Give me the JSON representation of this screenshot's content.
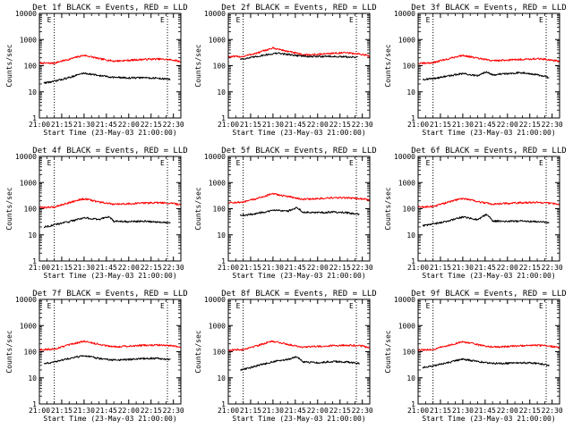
{
  "figure": {
    "background": "#ffffff",
    "colors": {
      "events": "#000000",
      "lld": "#ff0000",
      "axes": "#000000"
    }
  },
  "chart_data": [
    {
      "type": "line",
      "title": "Det 1f BLACK = Events, RED = LLD",
      "xlabel": "Start Time (23-May-03 21:00:00)",
      "ylabel": "Counts/sec",
      "x_ticks": [
        "21:00",
        "21:15",
        "21:30",
        "21:45",
        "22:00",
        "22:15",
        "22:30"
      ],
      "y_ticks": [
        "1",
        "10",
        "100",
        "1000",
        "10000"
      ],
      "y_scale": "log",
      "xlim": [
        0,
        95
      ],
      "ylim": [
        1,
        10000
      ],
      "markers": {
        "start_label": "E",
        "end_label": "E",
        "start_x": 10,
        "end_x": 86
      },
      "series": [
        {
          "name": "Events",
          "color": "#000000",
          "x": [
            3,
            10,
            20,
            30,
            40,
            50,
            60,
            70,
            80,
            88
          ],
          "values": [
            22,
            25,
            35,
            52,
            42,
            36,
            34,
            35,
            33,
            30
          ]
        },
        {
          "name": "LLD",
          "color": "#ff0000",
          "x": [
            0,
            10,
            20,
            30,
            40,
            50,
            60,
            70,
            80,
            90,
            95
          ],
          "values": [
            125,
            125,
            175,
            250,
            185,
            150,
            160,
            175,
            180,
            165,
            140
          ]
        }
      ]
    },
    {
      "type": "line",
      "title": "Det 2f BLACK = Events, RED = LLD",
      "xlabel": "Start Time (23-May-03 21:00:00)",
      "ylabel": "Counts/sec",
      "x_ticks": [
        "21:00",
        "21:15",
        "21:30",
        "21:45",
        "22:00",
        "22:15",
        "22:30"
      ],
      "y_ticks": [
        "1",
        "10",
        "100",
        "1000",
        "10000"
      ],
      "y_scale": "log",
      "xlim": [
        0,
        95
      ],
      "ylim": [
        1,
        10000
      ],
      "markers": {
        "start_label": "E",
        "end_label": "E",
        "start_x": 10,
        "end_x": 86
      },
      "series": [
        {
          "name": "Events",
          "color": "#000000",
          "x": [
            8,
            15,
            25,
            33,
            45,
            55,
            65,
            75,
            87
          ],
          "values": [
            180,
            200,
            260,
            300,
            250,
            220,
            230,
            220,
            210
          ]
        },
        {
          "name": "LLD",
          "color": "#ff0000",
          "x": [
            0,
            10,
            20,
            30,
            40,
            50,
            60,
            70,
            80,
            90,
            95
          ],
          "values": [
            220,
            225,
            310,
            470,
            350,
            260,
            270,
            300,
            310,
            270,
            230
          ]
        }
      ]
    },
    {
      "type": "line",
      "title": "Det 3f BLACK = Events, RED = LLD",
      "xlabel": "Start Time (23-May-03 21:00:00)",
      "ylabel": "Counts/sec",
      "x_ticks": [
        "21:00",
        "21:15",
        "21:30",
        "21:45",
        "22:00",
        "22:15",
        "22:30"
      ],
      "y_ticks": [
        "1",
        "10",
        "100",
        "1000",
        "10000"
      ],
      "y_scale": "log",
      "xlim": [
        0,
        95
      ],
      "ylim": [
        1,
        10000
      ],
      "markers": {
        "start_label": "E",
        "end_label": "E",
        "start_x": 10,
        "end_x": 86
      },
      "series": [
        {
          "name": "Events",
          "color": "#000000",
          "x": [
            3,
            10,
            20,
            30,
            40,
            46,
            50,
            60,
            70,
            80,
            88
          ],
          "values": [
            30,
            32,
            40,
            50,
            40,
            60,
            45,
            50,
            55,
            45,
            35
          ]
        },
        {
          "name": "LLD",
          "color": "#ff0000",
          "x": [
            0,
            10,
            20,
            30,
            40,
            50,
            60,
            70,
            80,
            90,
            95
          ],
          "values": [
            120,
            130,
            180,
            250,
            190,
            155,
            165,
            175,
            185,
            165,
            145
          ]
        }
      ]
    },
    {
      "type": "line",
      "title": "Det 4f BLACK = Events, RED = LLD",
      "xlabel": "Start Time (23-May-03 21:00:00)",
      "ylabel": "Counts/sec",
      "x_ticks": [
        "21:00",
        "21:15",
        "21:30",
        "21:45",
        "22:00",
        "22:15",
        "22:30"
      ],
      "y_ticks": [
        "1",
        "10",
        "100",
        "1000",
        "10000"
      ],
      "y_scale": "log",
      "xlim": [
        0,
        95
      ],
      "ylim": [
        1,
        10000
      ],
      "markers": {
        "start_label": "E",
        "end_label": "E",
        "start_x": 10,
        "end_x": 86
      },
      "series": [
        {
          "name": "Events",
          "color": "#000000",
          "x": [
            3,
            10,
            20,
            30,
            40,
            46,
            50,
            60,
            70,
            80,
            88
          ],
          "values": [
            20,
            24,
            32,
            45,
            38,
            50,
            33,
            32,
            33,
            31,
            30
          ]
        },
        {
          "name": "LLD",
          "color": "#ff0000",
          "x": [
            0,
            10,
            20,
            30,
            40,
            50,
            60,
            70,
            80,
            90,
            95
          ],
          "values": [
            110,
            115,
            170,
            240,
            180,
            145,
            155,
            165,
            170,
            160,
            140
          ]
        }
      ]
    },
    {
      "type": "line",
      "title": "Det 5f BLACK = Events, RED = LLD",
      "xlabel": "Start Time (23-May-03 21:00:00)",
      "ylabel": "Counts/sec",
      "x_ticks": [
        "21:00",
        "21:15",
        "21:30",
        "21:45",
        "22:00",
        "22:15",
        "22:30"
      ],
      "y_ticks": [
        "1",
        "10",
        "100",
        "1000",
        "10000"
      ],
      "y_scale": "log",
      "xlim": [
        0,
        95
      ],
      "ylim": [
        1,
        10000
      ],
      "markers": {
        "start_label": "E",
        "end_label": "E",
        "start_x": 10,
        "end_x": 86
      },
      "series": [
        {
          "name": "Events",
          "color": "#000000",
          "x": [
            8,
            15,
            25,
            33,
            40,
            46,
            50,
            60,
            70,
            80,
            88
          ],
          "values": [
            55,
            60,
            75,
            90,
            80,
            110,
            75,
            70,
            75,
            70,
            60
          ]
        },
        {
          "name": "LLD",
          "color": "#ff0000",
          "x": [
            0,
            10,
            20,
            30,
            40,
            50,
            60,
            70,
            80,
            90,
            95
          ],
          "values": [
            170,
            175,
            250,
            370,
            290,
            230,
            240,
            260,
            260,
            240,
            210
          ]
        }
      ]
    },
    {
      "type": "line",
      "title": "Det 6f BLACK = Events, RED = LLD",
      "xlabel": "Start Time (23-May-03 21:00:00)",
      "ylabel": "Counts/sec",
      "x_ticks": [
        "21:00",
        "21:15",
        "21:30",
        "21:45",
        "22:00",
        "22:15",
        "22:30"
      ],
      "y_ticks": [
        "1",
        "10",
        "100",
        "1000",
        "10000"
      ],
      "y_scale": "log",
      "xlim": [
        0,
        95
      ],
      "ylim": [
        1,
        10000
      ],
      "markers": {
        "start_label": "E",
        "end_label": "E",
        "start_x": 10,
        "end_x": 86
      },
      "series": [
        {
          "name": "Events",
          "color": "#000000",
          "x": [
            3,
            10,
            20,
            30,
            40,
            46,
            50,
            60,
            70,
            80,
            88
          ],
          "values": [
            22,
            26,
            33,
            48,
            38,
            60,
            34,
            33,
            34,
            32,
            29
          ]
        },
        {
          "name": "LLD",
          "color": "#ff0000",
          "x": [
            0,
            10,
            20,
            30,
            40,
            50,
            60,
            70,
            80,
            90,
            95
          ],
          "values": [
            115,
            120,
            175,
            250,
            185,
            150,
            160,
            170,
            175,
            160,
            140
          ]
        }
      ]
    },
    {
      "type": "line",
      "title": "Det 7f BLACK = Events, RED = LLD",
      "xlabel": "Start Time (23-May-03 21:00:00)",
      "ylabel": "Counts/sec",
      "x_ticks": [
        "21:00",
        "21:15",
        "21:30",
        "21:45",
        "22:00",
        "22:15",
        "22:30"
      ],
      "y_ticks": [
        "1",
        "10",
        "100",
        "1000",
        "10000"
      ],
      "y_scale": "log",
      "xlim": [
        0,
        95
      ],
      "ylim": [
        1,
        10000
      ],
      "markers": {
        "start_label": "E",
        "end_label": "E",
        "start_x": 10,
        "end_x": 86
      },
      "series": [
        {
          "name": "Events",
          "color": "#000000",
          "x": [
            3,
            10,
            20,
            30,
            40,
            50,
            60,
            70,
            80,
            88
          ],
          "values": [
            35,
            40,
            55,
            70,
            55,
            48,
            50,
            55,
            55,
            50
          ]
        },
        {
          "name": "LLD",
          "color": "#ff0000",
          "x": [
            0,
            10,
            20,
            30,
            40,
            50,
            60,
            70,
            80,
            90,
            95
          ],
          "values": [
            120,
            125,
            180,
            250,
            190,
            155,
            165,
            175,
            180,
            165,
            145
          ]
        }
      ]
    },
    {
      "type": "line",
      "title": "Det 8f BLACK = Events, RED = LLD",
      "xlabel": "Start Time (23-May-03 21:00:00)",
      "ylabel": "Counts/sec",
      "x_ticks": [
        "21:00",
        "21:15",
        "21:30",
        "21:45",
        "22:00",
        "22:15",
        "22:30"
      ],
      "y_ticks": [
        "1",
        "10",
        "100",
        "1000",
        "10000"
      ],
      "y_scale": "log",
      "xlim": [
        0,
        95
      ],
      "ylim": [
        1,
        10000
      ],
      "markers": {
        "start_label": "E",
        "end_label": "E",
        "start_x": 10,
        "end_x": 86
      },
      "series": [
        {
          "name": "Events",
          "color": "#000000",
          "x": [
            8,
            15,
            25,
            33,
            40,
            46,
            50,
            60,
            70,
            80,
            88
          ],
          "values": [
            20,
            25,
            35,
            45,
            50,
            65,
            40,
            38,
            42,
            40,
            35
          ]
        },
        {
          "name": "LLD",
          "color": "#ff0000",
          "x": [
            0,
            10,
            20,
            30,
            40,
            50,
            60,
            70,
            80,
            90,
            95
          ],
          "values": [
            115,
            120,
            175,
            250,
            190,
            150,
            160,
            170,
            180,
            165,
            140
          ]
        }
      ]
    },
    {
      "type": "line",
      "title": "Det 9f BLACK = Events, RED = LLD",
      "xlabel": "Start Time (23-May-03 21:00:00)",
      "ylabel": "Counts/sec",
      "x_ticks": [
        "21:00",
        "21:15",
        "21:30",
        "21:45",
        "22:00",
        "22:15",
        "22:30"
      ],
      "y_ticks": [
        "1",
        "10",
        "100",
        "1000",
        "10000"
      ],
      "y_scale": "log",
      "xlim": [
        0,
        95
      ],
      "ylim": [
        1,
        10000
      ],
      "markers": {
        "start_label": "E",
        "end_label": "E",
        "start_x": 10,
        "end_x": 86
      },
      "series": [
        {
          "name": "Events",
          "color": "#000000",
          "x": [
            3,
            10,
            20,
            30,
            40,
            50,
            60,
            70,
            80,
            88
          ],
          "values": [
            25,
            28,
            38,
            52,
            42,
            36,
            36,
            38,
            36,
            30
          ]
        },
        {
          "name": "LLD",
          "color": "#ff0000",
          "x": [
            0,
            10,
            20,
            30,
            40,
            50,
            60,
            70,
            80,
            90,
            95
          ],
          "values": [
            115,
            120,
            170,
            240,
            185,
            150,
            160,
            170,
            175,
            160,
            140
          ]
        }
      ]
    }
  ]
}
